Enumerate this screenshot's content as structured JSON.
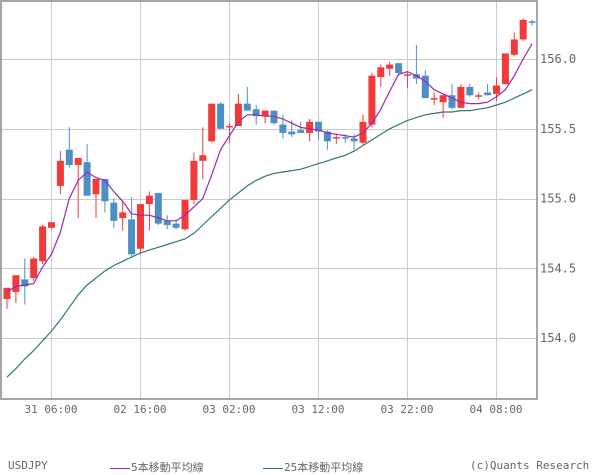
{
  "chart_data": {
    "type": "candlestick",
    "title": "USDJPY",
    "symbol": "USDJPY",
    "xlabel": "",
    "ylabel": "",
    "ylim": [
      153.63,
      156.42
    ],
    "grid": true,
    "legend_position": "bottom",
    "y_ticks": [
      "154.0",
      "154.5",
      "155.0",
      "155.5",
      "156.0"
    ],
    "x_ticks": [
      "31  06:00",
      "02  16:00",
      "03  02:00",
      "03  12:00",
      "03  22:00",
      "04  08:00"
    ],
    "colors": {
      "up": "#f23a3a",
      "down": "#4f8ec4",
      "ma5": "#9c27b0",
      "ma25": "#2e7a70",
      "grid": "#cccccc",
      "axis": "#888888"
    },
    "legend": [
      {
        "label": "5本移動平均線",
        "color": "#9c27b0"
      },
      {
        "label": "25本移動平均線",
        "color": "#2e7a70"
      }
    ],
    "candles": [
      {
        "o": 154.28,
        "h": 154.35,
        "l": 154.21,
        "c": 154.36
      },
      {
        "o": 154.33,
        "h": 154.4,
        "l": 154.25,
        "c": 154.45
      },
      {
        "o": 154.42,
        "h": 154.57,
        "l": 154.24,
        "c": 154.37
      },
      {
        "o": 154.43,
        "h": 154.58,
        "l": 154.41,
        "c": 154.57
      },
      {
        "o": 154.55,
        "h": 154.81,
        "l": 154.53,
        "c": 154.8
      },
      {
        "o": 154.79,
        "h": 154.83,
        "l": 154.78,
        "c": 154.83
      },
      {
        "o": 155.09,
        "h": 155.34,
        "l": 155.03,
        "c": 155.27
      },
      {
        "o": 155.35,
        "h": 155.51,
        "l": 155.22,
        "c": 155.24
      },
      {
        "o": 155.24,
        "h": 155.28,
        "l": 154.86,
        "c": 155.29
      },
      {
        "o": 155.26,
        "h": 155.39,
        "l": 155.02,
        "c": 155.02
      },
      {
        "o": 155.03,
        "h": 155.14,
        "l": 154.86,
        "c": 155.14
      },
      {
        "o": 155.14,
        "h": 155.14,
        "l": 154.9,
        "c": 154.98
      },
      {
        "o": 154.97,
        "h": 155.0,
        "l": 154.79,
        "c": 154.84
      },
      {
        "o": 154.86,
        "h": 154.98,
        "l": 154.77,
        "c": 154.9
      },
      {
        "o": 154.85,
        "h": 155.01,
        "l": 154.58,
        "c": 154.6
      },
      {
        "o": 154.64,
        "h": 154.96,
        "l": 154.6,
        "c": 154.96
      },
      {
        "o": 154.96,
        "h": 155.05,
        "l": 154.77,
        "c": 155.02
      },
      {
        "o": 155.04,
        "h": 155.04,
        "l": 154.81,
        "c": 154.82
      },
      {
        "o": 154.84,
        "h": 154.88,
        "l": 154.78,
        "c": 154.81
      },
      {
        "o": 154.82,
        "h": 154.85,
        "l": 154.78,
        "c": 154.79
      },
      {
        "o": 154.78,
        "h": 154.98,
        "l": 154.77,
        "c": 154.99
      },
      {
        "o": 154.99,
        "h": 155.33,
        "l": 154.96,
        "c": 155.27
      },
      {
        "o": 155.27,
        "h": 155.51,
        "l": 155.14,
        "c": 155.31
      },
      {
        "o": 155.41,
        "h": 155.67,
        "l": 155.4,
        "c": 155.68
      },
      {
        "o": 155.68,
        "h": 155.69,
        "l": 155.5,
        "c": 155.5
      },
      {
        "o": 155.51,
        "h": 155.54,
        "l": 155.4,
        "c": 155.52
      },
      {
        "o": 155.52,
        "h": 155.75,
        "l": 155.52,
        "c": 155.68
      },
      {
        "o": 155.68,
        "h": 155.8,
        "l": 155.63,
        "c": 155.63
      },
      {
        "o": 155.64,
        "h": 155.67,
        "l": 155.53,
        "c": 155.59
      },
      {
        "o": 155.59,
        "h": 155.63,
        "l": 155.54,
        "c": 155.63
      },
      {
        "o": 155.63,
        "h": 155.63,
        "l": 155.53,
        "c": 155.54
      },
      {
        "o": 155.53,
        "h": 155.6,
        "l": 155.43,
        "c": 155.47
      },
      {
        "o": 155.48,
        "h": 155.56,
        "l": 155.44,
        "c": 155.46
      },
      {
        "o": 155.49,
        "h": 155.55,
        "l": 155.47,
        "c": 155.47
      },
      {
        "o": 155.47,
        "h": 155.57,
        "l": 155.41,
        "c": 155.55
      },
      {
        "o": 155.55,
        "h": 155.55,
        "l": 155.42,
        "c": 155.48
      },
      {
        "o": 155.48,
        "h": 155.49,
        "l": 155.35,
        "c": 155.41
      },
      {
        "o": 155.43,
        "h": 155.46,
        "l": 155.39,
        "c": 155.44
      },
      {
        "o": 155.44,
        "h": 155.46,
        "l": 155.4,
        "c": 155.43
      },
      {
        "o": 155.43,
        "h": 155.46,
        "l": 155.35,
        "c": 155.41
      },
      {
        "o": 155.4,
        "h": 155.6,
        "l": 155.38,
        "c": 155.55
      },
      {
        "o": 155.53,
        "h": 155.9,
        "l": 155.51,
        "c": 155.88
      },
      {
        "o": 155.87,
        "h": 155.96,
        "l": 155.8,
        "c": 155.94
      },
      {
        "o": 155.93,
        "h": 155.98,
        "l": 155.88,
        "c": 155.96
      },
      {
        "o": 155.97,
        "h": 155.97,
        "l": 155.88,
        "c": 155.9
      },
      {
        "o": 155.88,
        "h": 155.91,
        "l": 155.79,
        "c": 155.89
      },
      {
        "o": 155.89,
        "h": 156.1,
        "l": 155.82,
        "c": 155.86
      },
      {
        "o": 155.88,
        "h": 155.92,
        "l": 155.72,
        "c": 155.72
      },
      {
        "o": 155.72,
        "h": 155.76,
        "l": 155.67,
        "c": 155.72
      },
      {
        "o": 155.69,
        "h": 155.75,
        "l": 155.58,
        "c": 155.74
      },
      {
        "o": 155.74,
        "h": 155.82,
        "l": 155.64,
        "c": 155.65
      },
      {
        "o": 155.65,
        "h": 155.82,
        "l": 155.65,
        "c": 155.8
      },
      {
        "o": 155.8,
        "h": 155.82,
        "l": 155.73,
        "c": 155.74
      },
      {
        "o": 155.73,
        "h": 155.76,
        "l": 155.71,
        "c": 155.74
      },
      {
        "o": 155.76,
        "h": 155.82,
        "l": 155.74,
        "c": 155.74
      },
      {
        "o": 155.75,
        "h": 155.87,
        "l": 155.7,
        "c": 155.81
      },
      {
        "o": 155.82,
        "h": 156.04,
        "l": 155.82,
        "c": 156.04
      },
      {
        "o": 156.03,
        "h": 156.19,
        "l": 156.02,
        "c": 156.14
      },
      {
        "o": 156.14,
        "h": 156.29,
        "l": 156.13,
        "c": 156.28
      },
      {
        "o": 156.27,
        "h": 156.28,
        "l": 156.24,
        "c": 156.26
      }
    ],
    "ma5": [
      154.33,
      154.37,
      154.38,
      154.39,
      154.51,
      154.6,
      154.76,
      155.0,
      155.13,
      155.19,
      155.15,
      155.13,
      155.05,
      154.98,
      154.89,
      154.88,
      154.88,
      154.86,
      154.84,
      154.84,
      154.88,
      154.94,
      155.0,
      155.17,
      155.35,
      155.45,
      155.55,
      155.6,
      155.6,
      155.59,
      155.59,
      155.57,
      155.54,
      155.51,
      155.5,
      155.49,
      155.47,
      155.46,
      155.45,
      155.44,
      155.47,
      155.54,
      155.64,
      155.77,
      155.89,
      155.91,
      155.88,
      155.84,
      155.78,
      155.75,
      155.72,
      155.69,
      155.68,
      155.68,
      155.69,
      155.73,
      155.78,
      155.88,
      156.0,
      156.11
    ],
    "ma25": [
      153.72,
      153.78,
      153.85,
      153.91,
      153.98,
      154.05,
      154.13,
      154.22,
      154.31,
      154.38,
      154.43,
      154.48,
      154.52,
      154.55,
      154.58,
      154.61,
      154.63,
      154.65,
      154.67,
      154.69,
      154.71,
      154.75,
      154.81,
      154.87,
      154.93,
      154.99,
      155.04,
      155.09,
      155.13,
      155.16,
      155.18,
      155.19,
      155.2,
      155.21,
      155.23,
      155.25,
      155.27,
      155.29,
      155.31,
      155.34,
      155.38,
      155.42,
      155.46,
      155.5,
      155.53,
      155.56,
      155.58,
      155.6,
      155.61,
      155.62,
      155.62,
      155.63,
      155.63,
      155.64,
      155.65,
      155.67,
      155.69,
      155.72,
      155.75,
      155.78
    ]
  },
  "axes": {
    "y_labels": [
      "156.0",
      "155.5",
      "155.0",
      "154.5",
      "154.0"
    ],
    "x_labels": [
      "31  06:00",
      "02  16:00",
      "03  02:00",
      "03  12:00",
      "03  22:00",
      "04  08:00"
    ]
  },
  "legend": {
    "symbol": "USDJPY",
    "ma5_label": "5本移動平均線",
    "ma25_label": "25本移動平均線",
    "copyright": "(c)Quants Research"
  }
}
